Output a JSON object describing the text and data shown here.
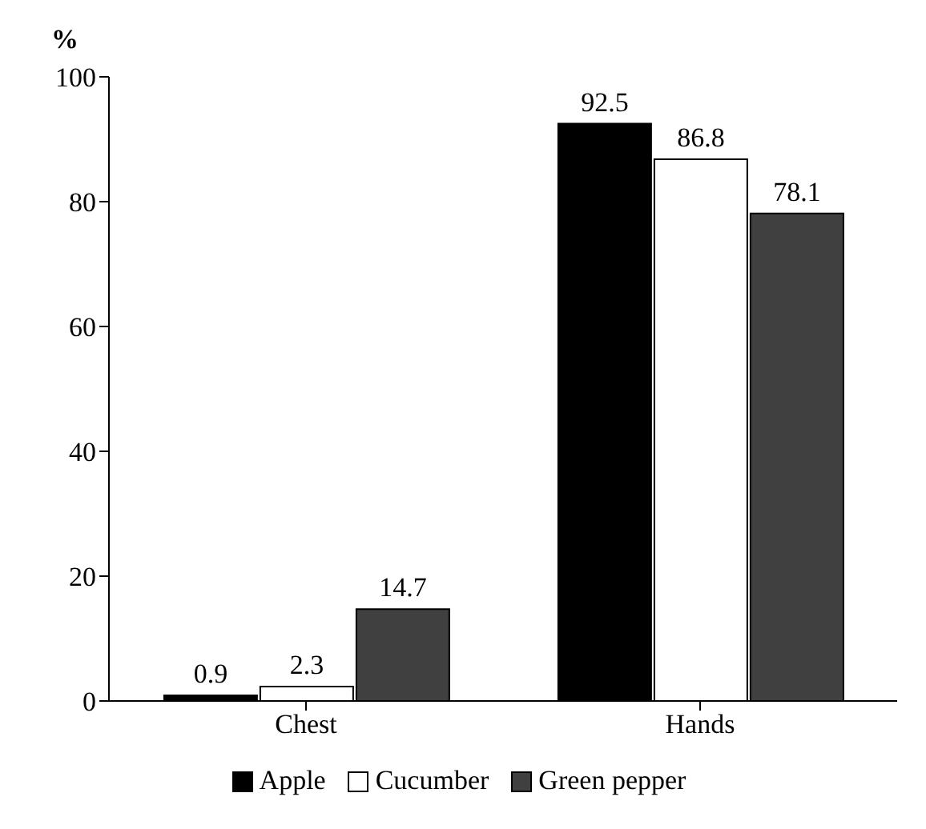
{
  "chart_data": {
    "type": "bar",
    "ylabel": "%",
    "categories": [
      "Chest",
      "Hands"
    ],
    "series": [
      {
        "name": "Apple",
        "color": "#000000",
        "values": [
          0.9,
          92.5
        ]
      },
      {
        "name": "Cucumber",
        "color": "#ffffff",
        "values": [
          2.3,
          86.8
        ]
      },
      {
        "name": "Green pepper",
        "color": "#404040",
        "values": [
          14.7,
          78.1
        ]
      }
    ],
    "ylim": [
      0,
      100
    ],
    "yticks": [
      0,
      20,
      40,
      60,
      80,
      100
    ],
    "data_labels": true,
    "legend": "bottom",
    "grid": false
  }
}
